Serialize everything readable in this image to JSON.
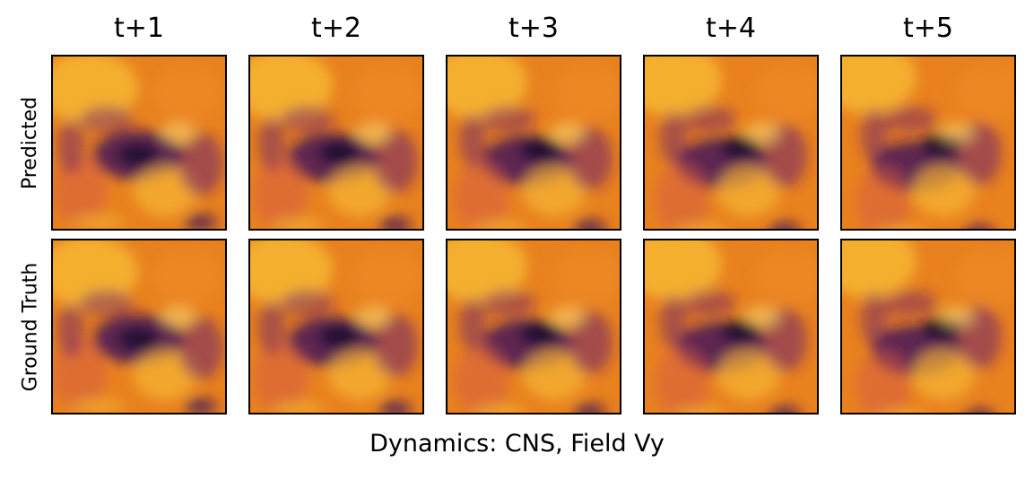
{
  "column_titles": [
    "t+1",
    "t+2",
    "t+3",
    "t+4",
    "t+5"
  ],
  "row_labels": [
    "Predicted",
    "Ground Truth"
  ],
  "caption": "Dynamics: CNS, Field Vy",
  "colormap": {
    "name": "inferno",
    "background": "#e8811e",
    "stops": [
      "#1a0a2e",
      "#3b0f5c",
      "#6b1d6e",
      "#a3336b",
      "#d45a45",
      "#f08a23",
      "#f7b733",
      "#fbe17a"
    ]
  }
}
